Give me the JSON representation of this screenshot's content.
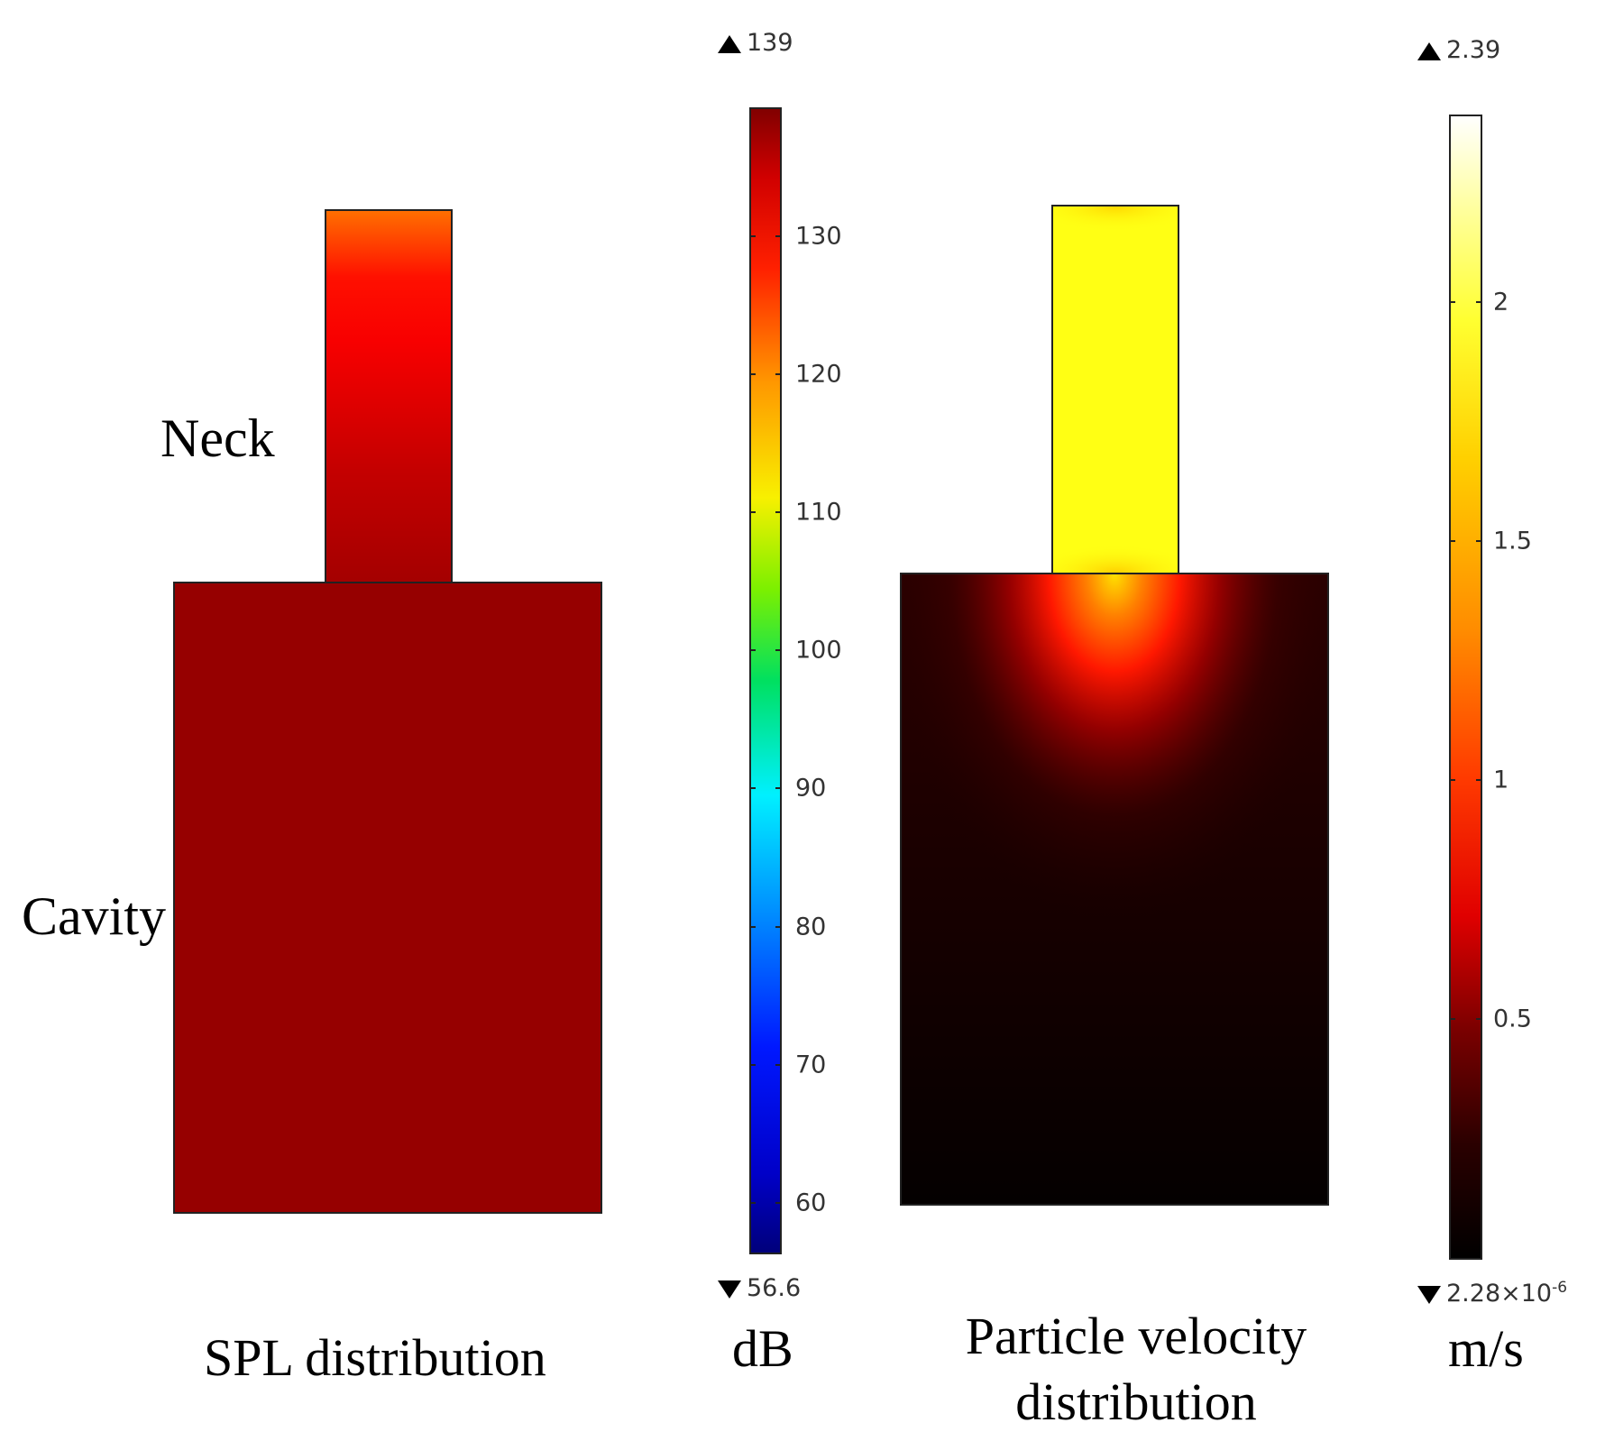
{
  "spl_panel": {
    "neck_label": "Neck",
    "cavity_label": "Cavity",
    "caption": "SPL distribution",
    "unit": "dB",
    "colorbar": {
      "max_label": "139",
      "min_label": "56.6",
      "ticks": [
        "130",
        "120",
        "110",
        "100",
        "90",
        "80",
        "70",
        "60"
      ]
    }
  },
  "velocity_panel": {
    "caption_line1": "Particle velocity",
    "caption_line2": "distribution",
    "unit": "m/s",
    "colorbar": {
      "max_label": "2.39",
      "min_label_base": "2.28×10",
      "min_label_exp": "-6",
      "ticks": [
        "2",
        "1.5",
        "1",
        "0.5"
      ]
    }
  },
  "colors": {
    "spl_cavity": "#960000",
    "spl_neck_top": "#ff6a00",
    "spl_neck_mid": "#ff0a00",
    "spl_neck_bottom": "#b00000",
    "velocity_neck": "#ffff14",
    "velocity_cavity_dark": "#0a0000"
  }
}
